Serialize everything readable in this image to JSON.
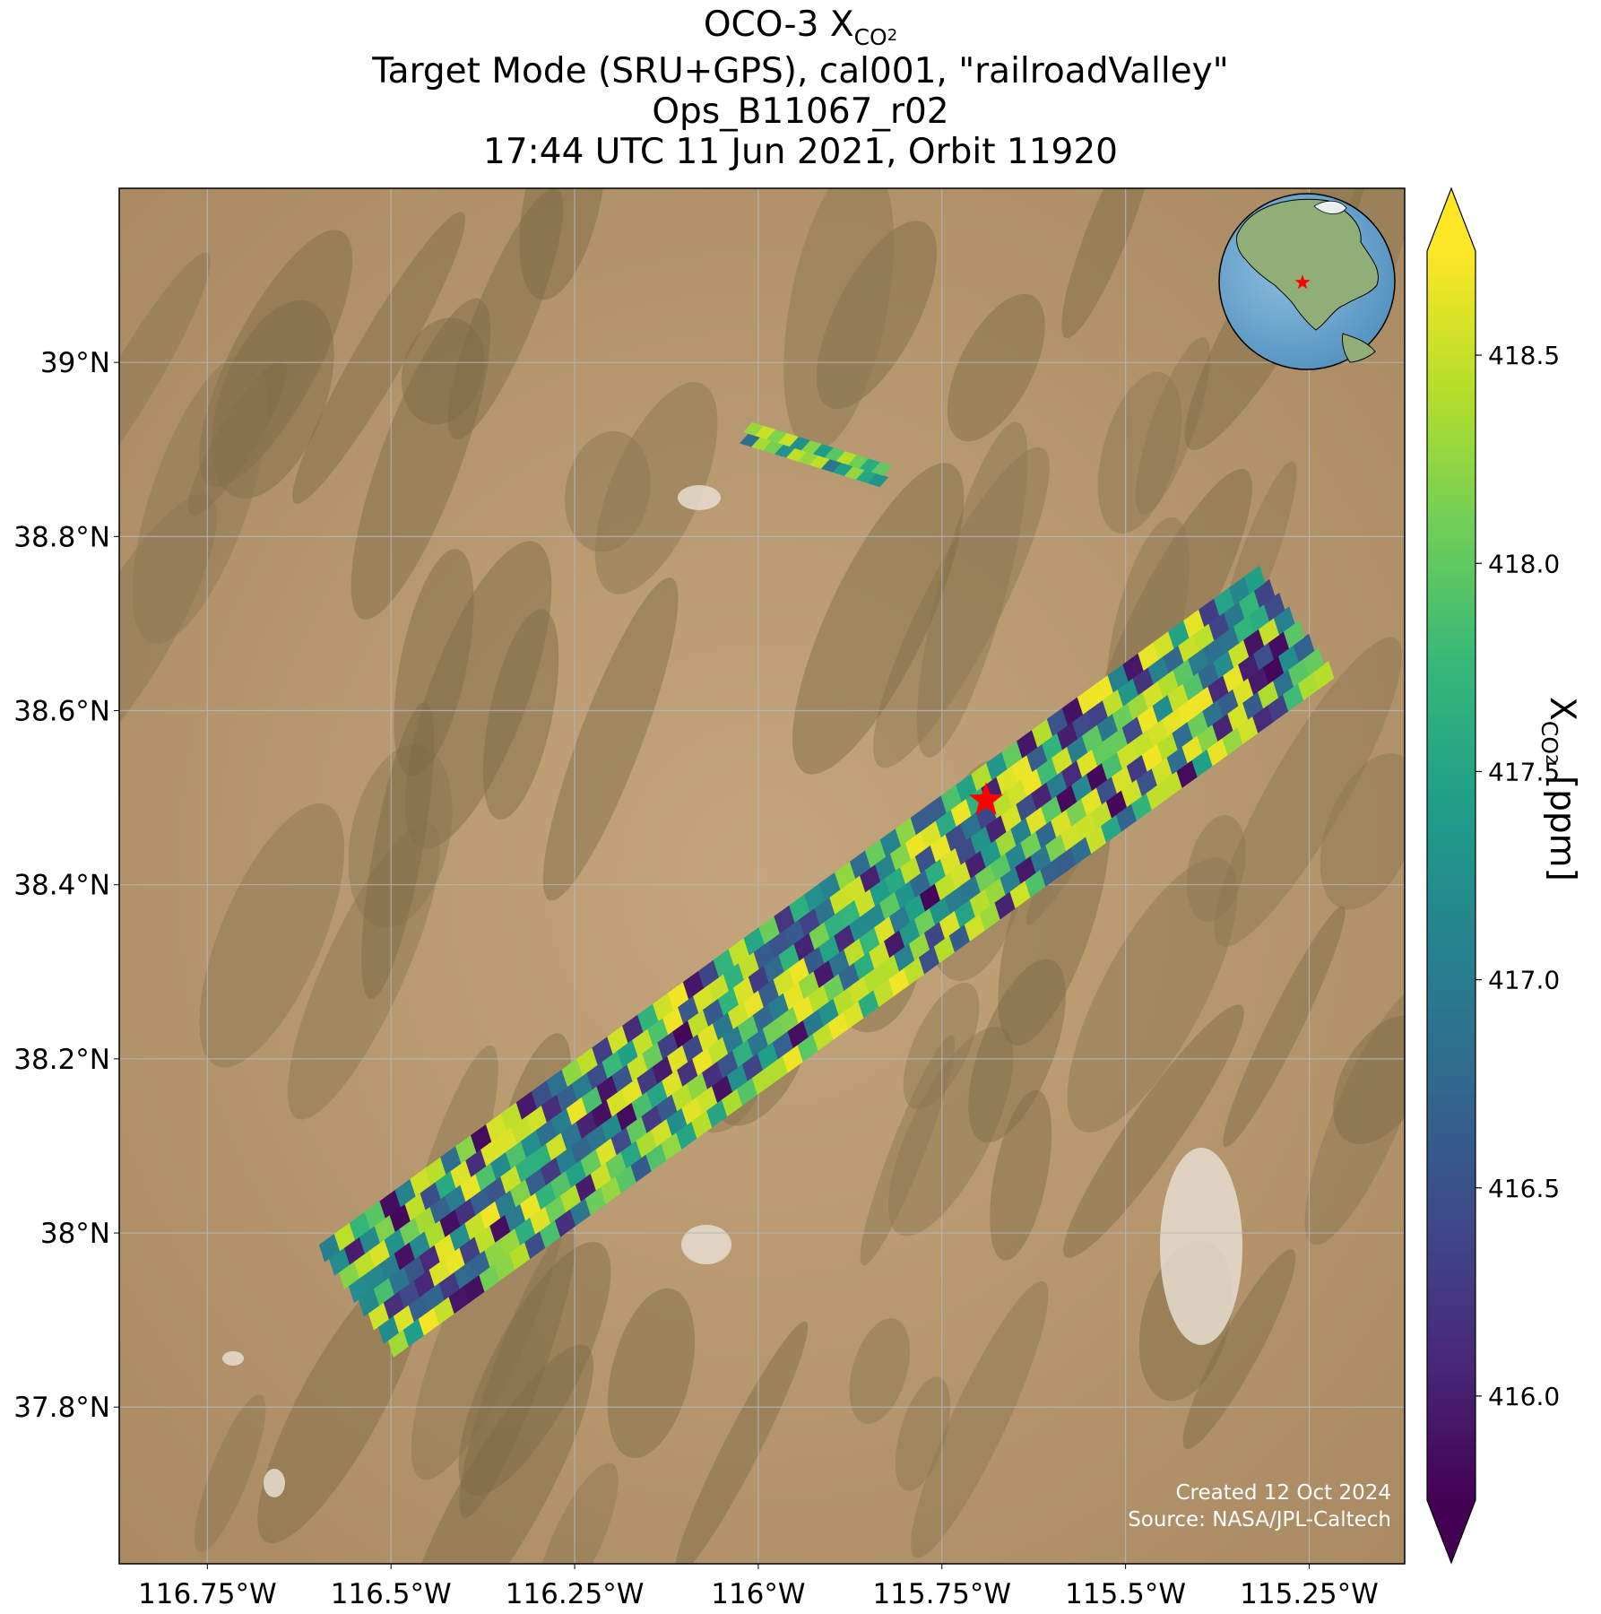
{
  "title": {
    "line1_prefix": "OCO-3 X",
    "line1_sub": "CO",
    "line1_subsub": "2",
    "line2": "Target Mode (SRU+GPS), cal001, \"railroadValley\"",
    "line3": "Ops_B11067_r02",
    "line4": "17:44 UTC 11 Jun 2021, Orbit 11920"
  },
  "map": {
    "lon_range": [
      -116.87,
      -115.12
    ],
    "lat_range": [
      37.62,
      39.2
    ],
    "lon_ticks": [
      -116.75,
      -116.5,
      -116.25,
      -116.0,
      -115.75,
      -115.5,
      -115.25
    ],
    "lon_tick_labels": [
      "116.75°W",
      "116.5°W",
      "116.25°W",
      "116°W",
      "115.75°W",
      "115.5°W",
      "115.25°W"
    ],
    "lat_ticks": [
      37.8,
      38.0,
      38.2,
      38.4,
      38.6,
      38.8,
      39.0
    ],
    "lat_tick_labels": [
      "37.8°N",
      "38°N",
      "38.2°N",
      "38.4°N",
      "38.6°N",
      "38.8°N",
      "39°N"
    ],
    "gridlines": true,
    "basemap": "satellite imagery, desert basin-and-range terrain",
    "target_marker": {
      "lon": -115.69,
      "lat": 38.497,
      "symbol": "red-star",
      "color": "#ff0000"
    },
    "inset": {
      "type": "globe",
      "region": "North America",
      "marker": "red-star",
      "placement": "top-right"
    },
    "credit_lines": [
      "Created 12 Oct 2024",
      "Source: NASA/JPL-Caltech"
    ]
  },
  "colorbar": {
    "colormap": "viridis",
    "range": [
      415.75,
      418.75
    ],
    "extend": "both",
    "ticks": [
      416.0,
      416.5,
      417.0,
      417.5,
      418.0,
      418.5
    ],
    "tick_labels": [
      "416.0",
      "416.5",
      "417.0",
      "417.5",
      "418.0",
      "418.5"
    ],
    "label_prefix": "X",
    "label_sub": "CO",
    "label_subsub": "2",
    "label_suffix": " [ppm]"
  },
  "colors": {
    "viridis": [
      "#440154",
      "#482878",
      "#3e4989",
      "#31688e",
      "#26828e",
      "#1f9e89",
      "#35b779",
      "#6ece58",
      "#b5de2b",
      "#fde725"
    ],
    "star": "#ff0000"
  },
  "chart_data": {
    "type": "heatmap",
    "variable": "XCO2",
    "units": "ppm",
    "swaths": [
      {
        "from_lon": -116.55,
        "from_lat": 37.92,
        "to_lon": -115.27,
        "to_lat": 38.7,
        "approx_value_range": [
          415.8,
          418.7
        ]
      },
      {
        "from_lon": -116.02,
        "from_lat": 38.92,
        "to_lon": -115.83,
        "to_lat": 38.87,
        "approx_value_range": [
          416.8,
          418.6
        ]
      }
    ]
  }
}
